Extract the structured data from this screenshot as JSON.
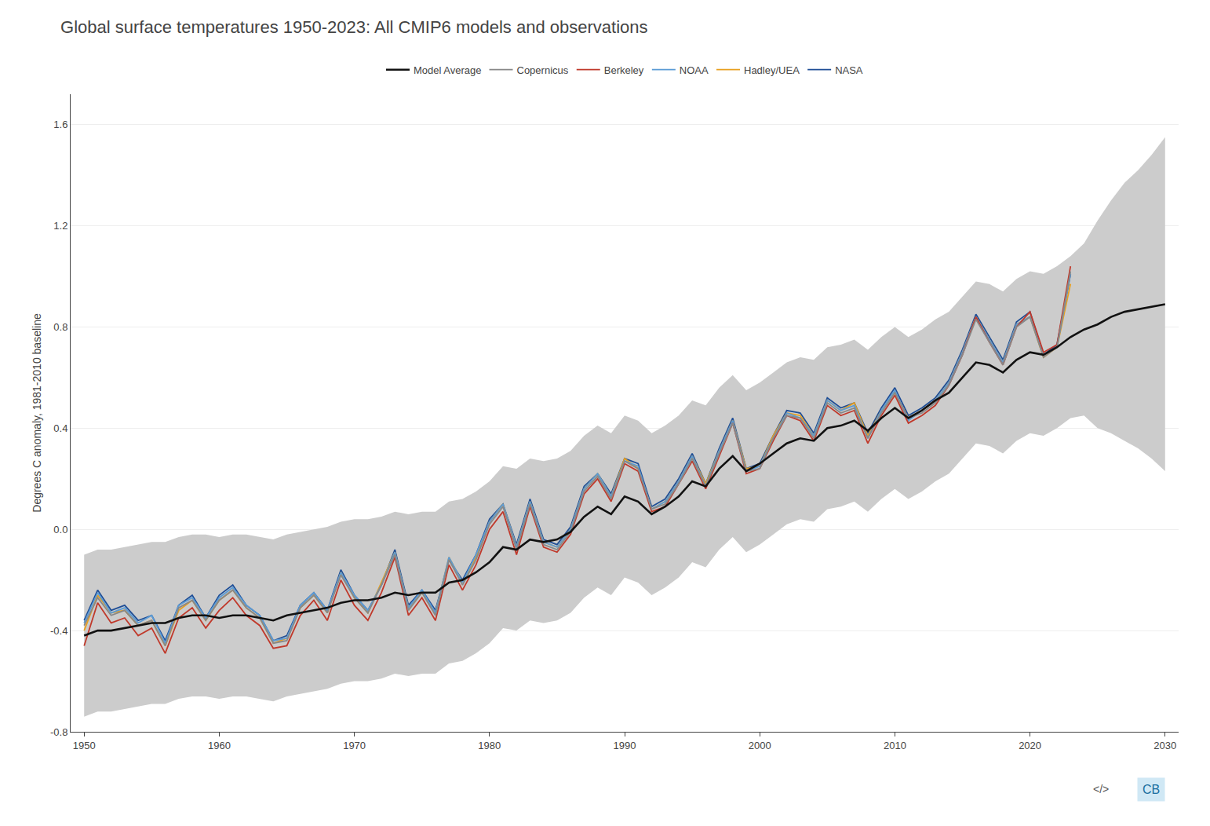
{
  "chart_data": {
    "type": "line",
    "title": "Global surface temperatures 1950-2023: All CMIP6 models and observations",
    "ylabel": "Degrees C anomaly, 1981-2010 baseline",
    "xlim": [
      1949,
      2031
    ],
    "ylim": [
      -0.8,
      1.72
    ],
    "xticks": [
      1950,
      1960,
      1970,
      1980,
      1990,
      2000,
      2010,
      2020,
      2030
    ],
    "yticks": [
      -0.8,
      -0.4,
      {
        "value": 0.0,
        "label": "0.0"
      },
      0.4,
      0.8,
      1.2,
      1.6
    ],
    "grid": "y",
    "legend": "top",
    "band": {
      "color": "#cccccc",
      "x": [
        1950,
        1951,
        1952,
        1953,
        1954,
        1955,
        1956,
        1957,
        1958,
        1959,
        1960,
        1961,
        1962,
        1963,
        1964,
        1965,
        1966,
        1967,
        1968,
        1969,
        1970,
        1971,
        1972,
        1973,
        1974,
        1975,
        1976,
        1977,
        1978,
        1979,
        1980,
        1981,
        1982,
        1983,
        1984,
        1985,
        1986,
        1987,
        1988,
        1989,
        1990,
        1991,
        1992,
        1993,
        1994,
        1995,
        1996,
        1997,
        1998,
        1999,
        2000,
        2001,
        2002,
        2003,
        2004,
        2005,
        2006,
        2007,
        2008,
        2009,
        2010,
        2011,
        2012,
        2013,
        2014,
        2015,
        2016,
        2017,
        2018,
        2019,
        2020,
        2021,
        2022,
        2023,
        2024,
        2025,
        2026,
        2027,
        2028,
        2029,
        2030
      ],
      "upper": [
        -0.1,
        -0.08,
        -0.08,
        -0.07,
        -0.06,
        -0.05,
        -0.05,
        -0.03,
        -0.02,
        -0.02,
        -0.03,
        -0.02,
        -0.02,
        -0.03,
        -0.04,
        -0.02,
        -0.01,
        0.0,
        0.01,
        0.03,
        0.04,
        0.04,
        0.05,
        0.07,
        0.06,
        0.07,
        0.07,
        0.11,
        0.12,
        0.15,
        0.19,
        0.25,
        0.24,
        0.28,
        0.27,
        0.28,
        0.31,
        0.37,
        0.41,
        0.38,
        0.45,
        0.43,
        0.38,
        0.41,
        0.45,
        0.51,
        0.49,
        0.56,
        0.61,
        0.55,
        0.58,
        0.62,
        0.66,
        0.68,
        0.67,
        0.72,
        0.73,
        0.75,
        0.71,
        0.76,
        0.8,
        0.76,
        0.79,
        0.83,
        0.86,
        0.92,
        0.98,
        0.97,
        0.94,
        0.99,
        1.02,
        1.01,
        1.04,
        1.08,
        1.13,
        1.22,
        1.3,
        1.37,
        1.42,
        1.48,
        1.55
      ],
      "lower": [
        -0.74,
        -0.72,
        -0.72,
        -0.71,
        -0.7,
        -0.69,
        -0.69,
        -0.67,
        -0.66,
        -0.66,
        -0.67,
        -0.66,
        -0.66,
        -0.67,
        -0.68,
        -0.66,
        -0.65,
        -0.64,
        -0.63,
        -0.61,
        -0.6,
        -0.6,
        -0.59,
        -0.57,
        -0.58,
        -0.57,
        -0.57,
        -0.53,
        -0.52,
        -0.49,
        -0.45,
        -0.39,
        -0.4,
        -0.36,
        -0.37,
        -0.36,
        -0.33,
        -0.27,
        -0.23,
        -0.26,
        -0.19,
        -0.21,
        -0.26,
        -0.23,
        -0.19,
        -0.13,
        -0.15,
        -0.08,
        -0.03,
        -0.09,
        -0.06,
        -0.02,
        0.02,
        0.04,
        0.03,
        0.08,
        0.09,
        0.11,
        0.07,
        0.12,
        0.16,
        0.12,
        0.15,
        0.19,
        0.22,
        0.28,
        0.34,
        0.33,
        0.3,
        0.35,
        0.38,
        0.37,
        0.4,
        0.44,
        0.45,
        0.4,
        0.38,
        0.35,
        0.32,
        0.28,
        0.23
      ]
    },
    "series": [
      {
        "name": "NASA",
        "color": "#1f4e96",
        "x": [
          1950,
          1951,
          1952,
          1953,
          1954,
          1955,
          1956,
          1957,
          1958,
          1959,
          1960,
          1961,
          1962,
          1963,
          1964,
          1965,
          1966,
          1967,
          1968,
          1969,
          1970,
          1971,
          1972,
          1973,
          1974,
          1975,
          1976,
          1977,
          1978,
          1979,
          1980,
          1981,
          1982,
          1983,
          1984,
          1985,
          1986,
          1987,
          1988,
          1989,
          1990,
          1991,
          1992,
          1993,
          1994,
          1995,
          1996,
          1997,
          1998,
          1999,
          2000,
          2001,
          2002,
          2003,
          2004,
          2005,
          2006,
          2007,
          2008,
          2009,
          2010,
          2011,
          2012,
          2013,
          2014,
          2015,
          2016,
          2017,
          2018,
          2019,
          2020,
          2021,
          2022,
          2023
        ],
        "values": [
          -0.36,
          -0.24,
          -0.32,
          -0.3,
          -0.36,
          -0.34,
          -0.44,
          -0.3,
          -0.26,
          -0.35,
          -0.26,
          -0.22,
          -0.3,
          -0.34,
          -0.44,
          -0.42,
          -0.3,
          -0.25,
          -0.32,
          -0.16,
          -0.26,
          -0.32,
          -0.22,
          -0.08,
          -0.3,
          -0.24,
          -0.32,
          -0.12,
          -0.2,
          -0.1,
          0.04,
          0.1,
          -0.06,
          0.12,
          -0.04,
          -0.06,
          0.01,
          0.17,
          0.22,
          0.14,
          0.28,
          0.26,
          0.09,
          0.12,
          0.2,
          0.3,
          0.18,
          0.32,
          0.44,
          0.24,
          0.26,
          0.37,
          0.47,
          0.46,
          0.38,
          0.52,
          0.48,
          0.5,
          0.38,
          0.48,
          0.56,
          0.45,
          0.48,
          0.52,
          0.59,
          0.71,
          0.85,
          0.76,
          0.67,
          0.82,
          0.86,
          0.69,
          0.73,
          1.01
        ]
      },
      {
        "name": "Hadley/UEA",
        "color": "#e8a020",
        "x": [
          1950,
          1951,
          1952,
          1953,
          1954,
          1955,
          1956,
          1957,
          1958,
          1959,
          1960,
          1961,
          1962,
          1963,
          1964,
          1965,
          1966,
          1967,
          1968,
          1969,
          1970,
          1971,
          1972,
          1973,
          1974,
          1975,
          1976,
          1977,
          1978,
          1979,
          1980,
          1981,
          1982,
          1983,
          1984,
          1985,
          1986,
          1987,
          1988,
          1989,
          1990,
          1991,
          1992,
          1993,
          1994,
          1995,
          1996,
          1997,
          1998,
          1999,
          2000,
          2001,
          2002,
          2003,
          2004,
          2005,
          2006,
          2007,
          2008,
          2009,
          2010,
          2011,
          2012,
          2013,
          2014,
          2015,
          2016,
          2017,
          2018,
          2019,
          2020,
          2021,
          2022,
          2023
        ],
        "values": [
          -0.4,
          -0.26,
          -0.33,
          -0.32,
          -0.38,
          -0.36,
          -0.46,
          -0.32,
          -0.28,
          -0.36,
          -0.28,
          -0.24,
          -0.31,
          -0.35,
          -0.45,
          -0.43,
          -0.31,
          -0.26,
          -0.33,
          -0.17,
          -0.27,
          -0.33,
          -0.21,
          -0.09,
          -0.31,
          -0.25,
          -0.33,
          -0.11,
          -0.21,
          -0.11,
          0.03,
          0.1,
          -0.07,
          0.11,
          -0.05,
          -0.07,
          0.0,
          0.16,
          0.22,
          0.13,
          0.28,
          0.24,
          0.08,
          0.11,
          0.19,
          0.29,
          0.18,
          0.31,
          0.43,
          0.24,
          0.25,
          0.37,
          0.46,
          0.45,
          0.37,
          0.51,
          0.47,
          0.5,
          0.37,
          0.47,
          0.54,
          0.44,
          0.47,
          0.51,
          0.58,
          0.7,
          0.84,
          0.75,
          0.66,
          0.81,
          0.84,
          0.68,
          0.72,
          0.97
        ]
      },
      {
        "name": "NOAA",
        "color": "#5b9bd5",
        "x": [
          1950,
          1951,
          1952,
          1953,
          1954,
          1955,
          1956,
          1957,
          1958,
          1959,
          1960,
          1961,
          1962,
          1963,
          1964,
          1965,
          1966,
          1967,
          1968,
          1969,
          1970,
          1971,
          1972,
          1973,
          1974,
          1975,
          1976,
          1977,
          1978,
          1979,
          1980,
          1981,
          1982,
          1983,
          1984,
          1985,
          1986,
          1987,
          1988,
          1989,
          1990,
          1991,
          1992,
          1993,
          1994,
          1995,
          1996,
          1997,
          1998,
          1999,
          2000,
          2001,
          2002,
          2003,
          2004,
          2005,
          2006,
          2007,
          2008,
          2009,
          2010,
          2011,
          2012,
          2013,
          2014,
          2015,
          2016,
          2017,
          2018,
          2019,
          2020,
          2021,
          2022,
          2023
        ],
        "values": [
          -0.37,
          -0.25,
          -0.33,
          -0.31,
          -0.37,
          -0.34,
          -0.45,
          -0.3,
          -0.27,
          -0.35,
          -0.27,
          -0.23,
          -0.3,
          -0.34,
          -0.44,
          -0.43,
          -0.3,
          -0.25,
          -0.32,
          -0.17,
          -0.26,
          -0.32,
          -0.22,
          -0.09,
          -0.31,
          -0.24,
          -0.33,
          -0.11,
          -0.21,
          -0.1,
          0.03,
          0.1,
          -0.07,
          0.11,
          -0.05,
          -0.07,
          0.0,
          0.16,
          0.22,
          0.13,
          0.27,
          0.25,
          0.08,
          0.11,
          0.19,
          0.29,
          0.17,
          0.31,
          0.43,
          0.23,
          0.25,
          0.36,
          0.46,
          0.44,
          0.37,
          0.51,
          0.47,
          0.49,
          0.36,
          0.47,
          0.55,
          0.43,
          0.47,
          0.51,
          0.58,
          0.7,
          0.84,
          0.75,
          0.66,
          0.81,
          0.84,
          0.69,
          0.72,
          1.01
        ]
      },
      {
        "name": "Berkeley",
        "color": "#c0392b",
        "x": [
          1950,
          1951,
          1952,
          1953,
          1954,
          1955,
          1956,
          1957,
          1958,
          1959,
          1960,
          1961,
          1962,
          1963,
          1964,
          1965,
          1966,
          1967,
          1968,
          1969,
          1970,
          1971,
          1972,
          1973,
          1974,
          1975,
          1976,
          1977,
          1978,
          1979,
          1980,
          1981,
          1982,
          1983,
          1984,
          1985,
          1986,
          1987,
          1988,
          1989,
          1990,
          1991,
          1992,
          1993,
          1994,
          1995,
          1996,
          1997,
          1998,
          1999,
          2000,
          2001,
          2002,
          2003,
          2004,
          2005,
          2006,
          2007,
          2008,
          2009,
          2010,
          2011,
          2012,
          2013,
          2014,
          2015,
          2016,
          2017,
          2018,
          2019,
          2020,
          2021,
          2022,
          2023
        ],
        "values": [
          -0.46,
          -0.29,
          -0.37,
          -0.35,
          -0.42,
          -0.39,
          -0.49,
          -0.35,
          -0.31,
          -0.39,
          -0.32,
          -0.27,
          -0.34,
          -0.38,
          -0.47,
          -0.46,
          -0.34,
          -0.28,
          -0.36,
          -0.2,
          -0.3,
          -0.36,
          -0.25,
          -0.11,
          -0.34,
          -0.27,
          -0.36,
          -0.14,
          -0.24,
          -0.14,
          0.0,
          0.07,
          -0.1,
          0.09,
          -0.07,
          -0.09,
          -0.02,
          0.14,
          0.2,
          0.11,
          0.26,
          0.23,
          0.07,
          0.09,
          0.18,
          0.27,
          0.16,
          0.29,
          0.42,
          0.22,
          0.24,
          0.35,
          0.45,
          0.43,
          0.35,
          0.49,
          0.45,
          0.47,
          0.34,
          0.45,
          0.53,
          0.42,
          0.45,
          0.49,
          0.57,
          0.69,
          0.84,
          0.74,
          0.65,
          0.8,
          0.86,
          0.7,
          0.73,
          1.04
        ]
      },
      {
        "name": "Copernicus",
        "color": "#888888",
        "x": [
          1950,
          1951,
          1952,
          1953,
          1954,
          1955,
          1956,
          1957,
          1958,
          1959,
          1960,
          1961,
          1962,
          1963,
          1964,
          1965,
          1966,
          1967,
          1968,
          1969,
          1970,
          1971,
          1972,
          1973,
          1974,
          1975,
          1976,
          1977,
          1978,
          1979,
          1980,
          1981,
          1982,
          1983,
          1984,
          1985,
          1986,
          1987,
          1988,
          1989,
          1990,
          1991,
          1992,
          1993,
          1994,
          1995,
          1996,
          1997,
          1998,
          1999,
          2000,
          2001,
          2002,
          2003,
          2004,
          2005,
          2006,
          2007,
          2008,
          2009,
          2010,
          2011,
          2012,
          2013,
          2014,
          2015,
          2016,
          2017,
          2018,
          2019,
          2020,
          2021,
          2022,
          2023
        ],
        "values": [
          -0.38,
          -0.27,
          -0.34,
          -0.32,
          -0.38,
          -0.36,
          -0.46,
          -0.31,
          -0.28,
          -0.36,
          -0.28,
          -0.24,
          -0.31,
          -0.35,
          -0.45,
          -0.44,
          -0.31,
          -0.26,
          -0.33,
          -0.18,
          -0.27,
          -0.33,
          -0.22,
          -0.1,
          -0.32,
          -0.25,
          -0.34,
          -0.12,
          -0.22,
          -0.12,
          0.02,
          0.09,
          -0.08,
          0.1,
          -0.06,
          -0.08,
          -0.01,
          0.15,
          0.21,
          0.12,
          0.27,
          0.24,
          0.08,
          0.1,
          0.18,
          0.28,
          0.17,
          0.3,
          0.42,
          0.23,
          0.24,
          0.36,
          0.45,
          0.44,
          0.36,
          0.5,
          0.46,
          0.48,
          0.36,
          0.46,
          0.54,
          0.44,
          0.46,
          0.5,
          0.57,
          0.69,
          0.83,
          0.74,
          0.65,
          0.8,
          0.84,
          0.68,
          0.72,
          1.02
        ]
      },
      {
        "name": "Model Average",
        "color": "#111111",
        "x": [
          1950,
          1951,
          1952,
          1953,
          1954,
          1955,
          1956,
          1957,
          1958,
          1959,
          1960,
          1961,
          1962,
          1963,
          1964,
          1965,
          1966,
          1967,
          1968,
          1969,
          1970,
          1971,
          1972,
          1973,
          1974,
          1975,
          1976,
          1977,
          1978,
          1979,
          1980,
          1981,
          1982,
          1983,
          1984,
          1985,
          1986,
          1987,
          1988,
          1989,
          1990,
          1991,
          1992,
          1993,
          1994,
          1995,
          1996,
          1997,
          1998,
          1999,
          2000,
          2001,
          2002,
          2003,
          2004,
          2005,
          2006,
          2007,
          2008,
          2009,
          2010,
          2011,
          2012,
          2013,
          2014,
          2015,
          2016,
          2017,
          2018,
          2019,
          2020,
          2021,
          2022,
          2023,
          2024,
          2025,
          2026,
          2027,
          2028,
          2029,
          2030
        ],
        "values": [
          -0.42,
          -0.4,
          -0.4,
          -0.39,
          -0.38,
          -0.37,
          -0.37,
          -0.35,
          -0.34,
          -0.34,
          -0.35,
          -0.34,
          -0.34,
          -0.35,
          -0.36,
          -0.34,
          -0.33,
          -0.32,
          -0.31,
          -0.29,
          -0.28,
          -0.28,
          -0.27,
          -0.25,
          -0.26,
          -0.25,
          -0.25,
          -0.21,
          -0.2,
          -0.17,
          -0.13,
          -0.07,
          -0.08,
          -0.04,
          -0.05,
          -0.04,
          -0.01,
          0.05,
          0.09,
          0.06,
          0.13,
          0.11,
          0.06,
          0.09,
          0.13,
          0.19,
          0.17,
          0.24,
          0.29,
          0.23,
          0.26,
          0.3,
          0.34,
          0.36,
          0.35,
          0.4,
          0.41,
          0.43,
          0.39,
          0.44,
          0.48,
          0.44,
          0.47,
          0.51,
          0.54,
          0.6,
          0.66,
          0.65,
          0.62,
          0.67,
          0.7,
          0.69,
          0.72,
          0.76,
          0.79,
          0.81,
          0.84,
          0.86,
          0.87,
          0.88,
          0.89
        ]
      }
    ],
    "annotations": [
      {
        "text": "</>"
      },
      {
        "text": "CB"
      }
    ]
  }
}
